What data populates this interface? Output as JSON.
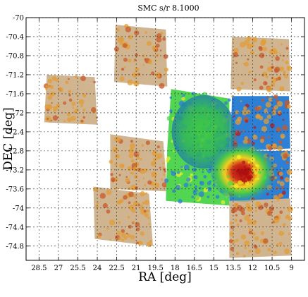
{
  "chart_data": {
    "type": "heatmap",
    "title": "SMC s/r 8.1000",
    "xlabel": "RA [deg]",
    "ylabel": "DEC [deg]",
    "xlim": [
      29.5,
      8.0
    ],
    "ylim": [
      -75.1,
      -70.0
    ],
    "x_ticks": [
      "28.5",
      "27",
      "25.5",
      "24",
      "22.5",
      "21",
      "19.5",
      "18",
      "16.5",
      "15",
      "13.5",
      "12",
      "10.5",
      "9"
    ],
    "x_tick_values": [
      28.5,
      27,
      25.5,
      24,
      22.5,
      21,
      19.5,
      18,
      16.5,
      15,
      13.5,
      12,
      10.5,
      9
    ],
    "y_ticks": [
      "-70",
      "-70.4",
      "-70.8",
      "-71.2",
      "-71.6",
      "-72",
      "-72.4",
      "-72.8",
      "-73.2",
      "-73.6",
      "-74",
      "-74.4",
      "-74.8"
    ],
    "y_tick_values": [
      -70,
      -70.4,
      -70.8,
      -71.2,
      -71.6,
      -72,
      -72.4,
      -72.8,
      -73.2,
      -73.6,
      -74,
      -74.4,
      -74.8
    ],
    "grid": true,
    "colormap": [
      "#d2b48c",
      "#e59a2a",
      "#c8501c",
      "#b01010",
      "#f0f020",
      "#48d848",
      "#1f7ad8"
    ],
    "fields": [
      {
        "name": "field-left-upper",
        "corners": [
          [
            27.9,
            -71.2
          ],
          [
            24.2,
            -71.25
          ],
          [
            24.0,
            -72.25
          ],
          [
            28.1,
            -72.2
          ]
        ],
        "level": 0.18
      },
      {
        "name": "field-top-middle",
        "corners": [
          [
            22.6,
            -70.15
          ],
          [
            18.7,
            -70.25
          ],
          [
            18.6,
            -71.45
          ],
          [
            22.7,
            -71.35
          ]
        ],
        "level": 0.18
      },
      {
        "name": "field-middle-left",
        "corners": [
          [
            23.0,
            -72.45
          ],
          [
            18.9,
            -72.6
          ],
          [
            18.6,
            -73.65
          ],
          [
            23.0,
            -73.6
          ]
        ],
        "level": 0.35
      },
      {
        "name": "field-bottom-left",
        "corners": [
          [
            24.3,
            -73.55
          ],
          [
            20.0,
            -73.7
          ],
          [
            19.7,
            -74.8
          ],
          [
            24.2,
            -74.65
          ]
        ],
        "level": 0.22
      },
      {
        "name": "field-center-upper",
        "corners": [
          [
            18.3,
            -71.5
          ],
          [
            13.8,
            -71.7
          ],
          [
            13.8,
            -72.85
          ],
          [
            18.6,
            -72.75
          ]
        ],
        "level": 0.8
      },
      {
        "name": "field-center-lower",
        "corners": [
          [
            18.6,
            -72.75
          ],
          [
            13.8,
            -72.8
          ],
          [
            13.8,
            -73.95
          ],
          [
            18.7,
            -73.85
          ]
        ],
        "level": 0.75
      },
      {
        "name": "field-top-right",
        "corners": [
          [
            13.6,
            -70.4
          ],
          [
            9.2,
            -70.45
          ],
          [
            9.1,
            -71.55
          ],
          [
            13.7,
            -71.5
          ]
        ],
        "level": 0.3
      },
      {
        "name": "field-right-upper",
        "corners": [
          [
            13.6,
            -71.65
          ],
          [
            9.2,
            -71.65
          ],
          [
            9.1,
            -72.75
          ],
          [
            13.7,
            -72.8
          ]
        ],
        "level": 0.55
      },
      {
        "name": "field-right-middle",
        "corners": [
          [
            13.7,
            -72.8
          ],
          [
            9.1,
            -72.8
          ],
          [
            9.2,
            -73.85
          ],
          [
            13.8,
            -73.95
          ]
        ],
        "level": 0.6
      },
      {
        "name": "field-bottom-right",
        "corners": [
          [
            13.8,
            -73.85
          ],
          [
            9.1,
            -73.8
          ],
          [
            9.0,
            -75.0
          ],
          [
            13.8,
            -75.05
          ]
        ],
        "level": 0.35
      }
    ]
  }
}
